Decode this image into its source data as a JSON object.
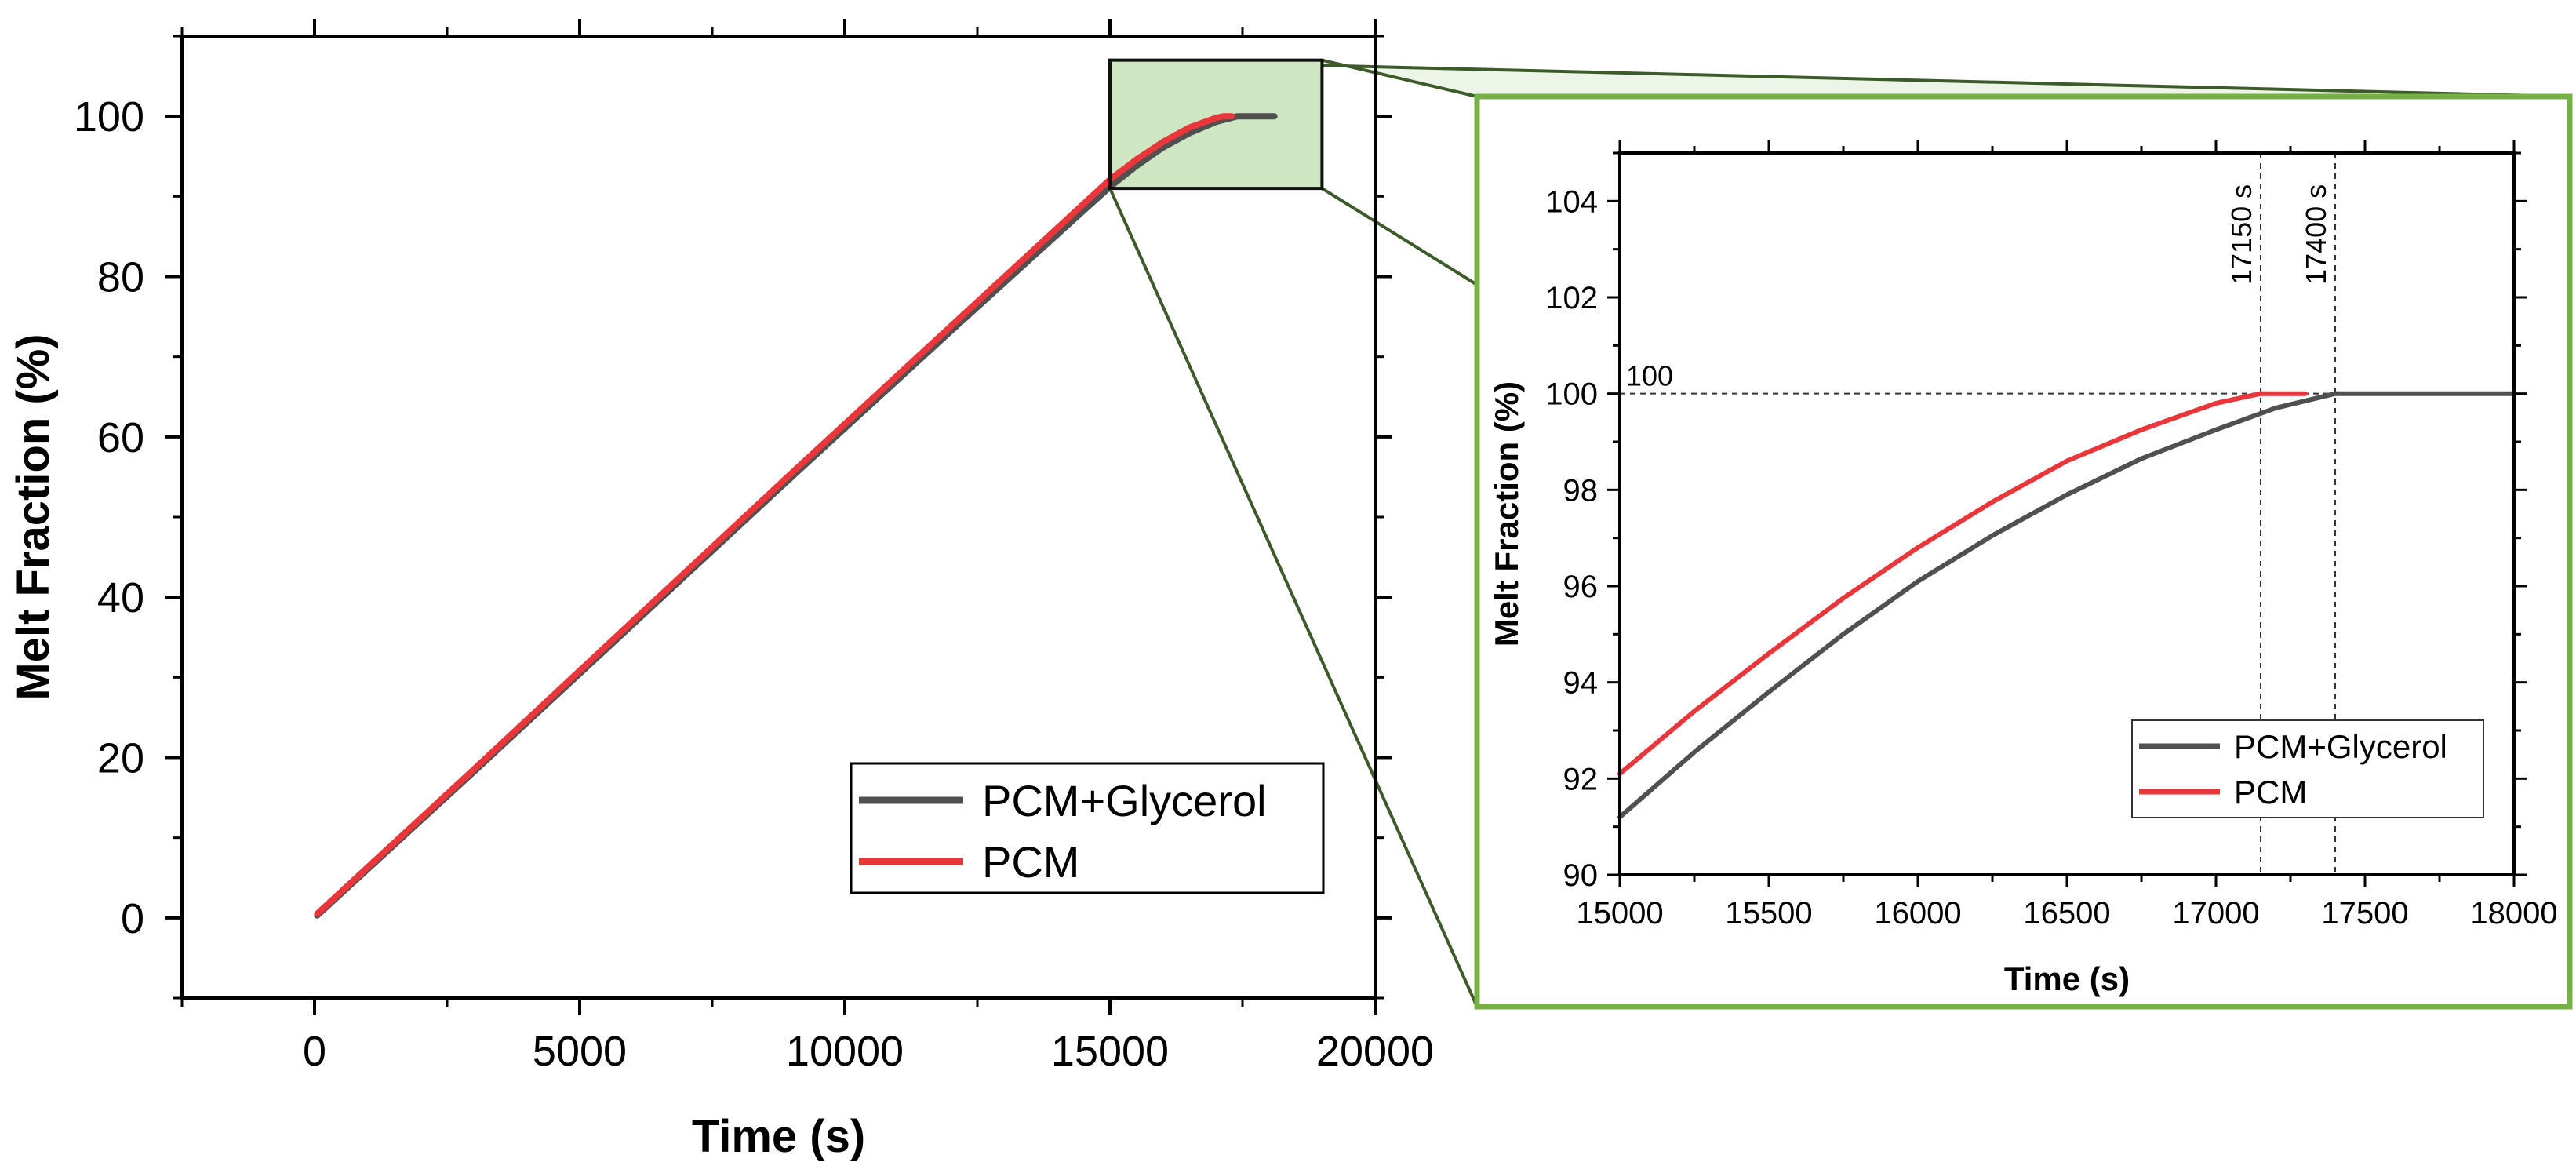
{
  "colors": {
    "pcm_glycerol": "#505050",
    "pcm": "#e8363a",
    "zoom_fill": "#cfe6c2",
    "zoom_frame": "#78b048",
    "zoom_connector": "#3c5a2a"
  },
  "chart_data": [
    {
      "id": "main",
      "type": "line",
      "title": "",
      "xlabel": "Time (s)",
      "ylabel": "Melt Fraction (%)",
      "xlim": [
        -2500,
        20000
      ],
      "ylim": [
        -10,
        110
      ],
      "xticks": [
        0,
        5000,
        10000,
        15000,
        20000
      ],
      "xtick_labels": [
        "0",
        "5000",
        "10000",
        "15000",
        "20000"
      ],
      "yticks": [
        0,
        20,
        40,
        60,
        80,
        100
      ],
      "ytick_labels": [
        "0",
        "20",
        "40",
        "60",
        "80",
        "100"
      ],
      "legend_position": "bottom-right",
      "zoom_region": {
        "x": [
          15000,
          19000
        ],
        "y": [
          91,
          107
        ]
      },
      "series": [
        {
          "name": "PCM+Glycerol",
          "color_key": "pcm_glycerol",
          "x": [
            50,
            3000,
            6000,
            9000,
            12000,
            15000,
            15500,
            16000,
            16500,
            17000,
            17400,
            18100
          ],
          "y": [
            0.3,
            18.2,
            36.6,
            55.0,
            73.2,
            91.2,
            93.8,
            96.1,
            97.9,
            99.3,
            100.0,
            100.0
          ]
        },
        {
          "name": "PCM",
          "color_key": "pcm",
          "x": [
            50,
            3000,
            6000,
            9000,
            12000,
            15000,
            15500,
            16000,
            16500,
            17000,
            17150,
            17300
          ],
          "y": [
            0.5,
            18.5,
            37.0,
            55.5,
            73.8,
            92.1,
            94.6,
            96.8,
            98.6,
            99.8,
            100.0,
            100.0
          ]
        }
      ]
    },
    {
      "id": "inset",
      "type": "line",
      "title": "",
      "xlabel": "Time (s)",
      "ylabel": "Melt Fraction (%)",
      "xlim": [
        15000,
        18000
      ],
      "ylim": [
        90,
        105
      ],
      "xticks": [
        15000,
        15500,
        16000,
        16500,
        17000,
        17500,
        18000
      ],
      "xtick_labels": [
        "15000",
        "15500",
        "16000",
        "16500",
        "17000",
        "17500",
        "18000"
      ],
      "yticks": [
        90,
        92,
        94,
        96,
        98,
        100,
        102,
        104
      ],
      "ytick_labels": [
        "90",
        "92",
        "94",
        "96",
        "98",
        "100",
        "102",
        "104"
      ],
      "legend_position": "bottom-right",
      "annotations": [
        {
          "type": "vline",
          "x": 17150,
          "label": "17150 s"
        },
        {
          "type": "vline",
          "x": 17400,
          "label": "17400 s"
        },
        {
          "type": "hline",
          "y": 100,
          "label": "100"
        }
      ],
      "series": [
        {
          "name": "PCM+Glycerol",
          "color_key": "pcm_glycerol",
          "x": [
            15000,
            15250,
            15500,
            15750,
            16000,
            16250,
            16500,
            16750,
            17000,
            17200,
            17400,
            17700,
            18000
          ],
          "y": [
            91.2,
            92.55,
            93.8,
            95.0,
            96.1,
            97.05,
            97.9,
            98.65,
            99.25,
            99.7,
            100.0,
            100.0,
            100.0
          ]
        },
        {
          "name": "PCM",
          "color_key": "pcm",
          "x": [
            15000,
            15250,
            15500,
            15750,
            16000,
            16250,
            16500,
            16750,
            17000,
            17150,
            17300
          ],
          "y": [
            92.1,
            93.4,
            94.6,
            95.75,
            96.8,
            97.75,
            98.6,
            99.25,
            99.8,
            100.0,
            100.0
          ]
        }
      ]
    }
  ]
}
